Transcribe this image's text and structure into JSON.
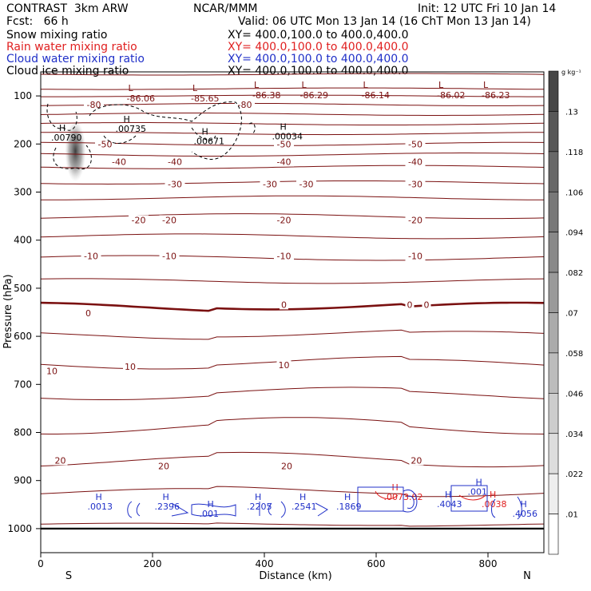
{
  "header": {
    "title": "CONTRAST  3km ARW",
    "fcst": "Fcst:   66 h",
    "center": "NCAR/MMM",
    "init": "Init: 12 UTC Fri 10 Jan 14",
    "valid": "Valid: 06 UTC Mon 13 Jan 14 (16 ChT Mon 13 Jan 14)"
  },
  "legend_rows": [
    {
      "field": "Snow mixing ratio",
      "xy": "",
      "color": "#000000"
    },
    {
      "field": "Rain water mixing ratio",
      "xy": "XY= 400.0,100.0 to 400.0,400.0",
      "color": "#e02020"
    },
    {
      "field": "Cloud water mixing ratio",
      "xy": "XY= 400.0,100.0 to 400.0,400.0",
      "color": "#2030c8"
    },
    {
      "field": "Cloud ice mixing ratio",
      "xy": "XY= 400.0,100.0 to 400.0,400.0",
      "color": "#000000"
    }
  ],
  "xy_snow": "XY= 400.0,100.0 to 400.0,400.0",
  "colors": {
    "temperature": "#7a1010",
    "rain": "#e02020",
    "cloud_water": "#2030c8",
    "ice": "#000000"
  },
  "chart_data": {
    "type": "cross-section contour",
    "xlabel": "Distance (km)",
    "ylabel": "Pressure (hPa)",
    "xlim": [
      0,
      900
    ],
    "ylim": [
      1050,
      50
    ],
    "x_ticks": [
      0,
      200,
      400,
      600,
      800
    ],
    "y_ticks": [
      100,
      200,
      300,
      400,
      500,
      600,
      700,
      800,
      900,
      1000
    ],
    "x_end_labels": {
      "left": "S",
      "right": "N"
    },
    "colorbar": {
      "unit": "g kg⁻¹",
      "ticks": [
        ".01",
        ".022",
        ".034",
        ".046",
        ".058",
        ".07",
        ".082",
        ".094",
        ".106",
        ".118",
        ".13"
      ]
    },
    "temperature_contours": [
      {
        "label": "-80",
        "value": -80
      },
      {
        "label": "-50",
        "value": -50
      },
      {
        "label": "-40",
        "value": -40
      },
      {
        "label": "-30",
        "value": -30
      },
      {
        "label": "-20",
        "value": -20
      },
      {
        "label": "-10",
        "value": -10
      },
      {
        "label": "0",
        "value": 0
      },
      {
        "label": "10",
        "value": 10
      },
      {
        "label": "20",
        "value": 20
      }
    ],
    "lows": [
      {
        "x": 165,
        "p": 85,
        "label": "-86.06"
      },
      {
        "x": 280,
        "p": 85,
        "label": "-85.65"
      },
      {
        "x": 390,
        "p": 78,
        "label": "-86.38"
      },
      {
        "x": 475,
        "p": 78,
        "label": "-86.29"
      },
      {
        "x": 585,
        "p": 78,
        "label": "-86.14"
      },
      {
        "x": 720,
        "p": 78,
        "label": "-86.02"
      },
      {
        "x": 800,
        "p": 78,
        "label": "-86.23"
      }
    ],
    "highs": [
      {
        "x": 30,
        "p": 178,
        "label": ".00790",
        "color": "#000000"
      },
      {
        "x": 145,
        "p": 160,
        "label": ".00735",
        "color": "#000000"
      },
      {
        "x": 285,
        "p": 185,
        "label": ".00671",
        "color": "#000000"
      },
      {
        "x": 425,
        "p": 175,
        "label": ".00034",
        "color": "#000000"
      },
      {
        "x": 95,
        "p": 945,
        "label": ".0013",
        "color": "#2030c8"
      },
      {
        "x": 215,
        "p": 945,
        "label": ".2396",
        "color": "#2030c8"
      },
      {
        "x": 295,
        "p": 960,
        "label": ".001",
        "color": "#2030c8"
      },
      {
        "x": 380,
        "p": 945,
        "label": ".2205",
        "color": "#2030c8"
      },
      {
        "x": 460,
        "p": 945,
        "label": ".2541",
        "color": "#2030c8"
      },
      {
        "x": 540,
        "p": 945,
        "label": ".1869",
        "color": "#2030c8"
      },
      {
        "x": 625,
        "p": 925,
        "label": ".0073.02",
        "color": "#e02020"
      },
      {
        "x": 720,
        "p": 940,
        "label": ".4043",
        "color": "#2030c8"
      },
      {
        "x": 775,
        "p": 915,
        "label": ".001",
        "color": "#2030c8"
      },
      {
        "x": 800,
        "p": 940,
        "label": ".0038",
        "color": "#e02020"
      },
      {
        "x": 855,
        "p": 960,
        "label": ".4056",
        "color": "#2030c8"
      }
    ]
  }
}
